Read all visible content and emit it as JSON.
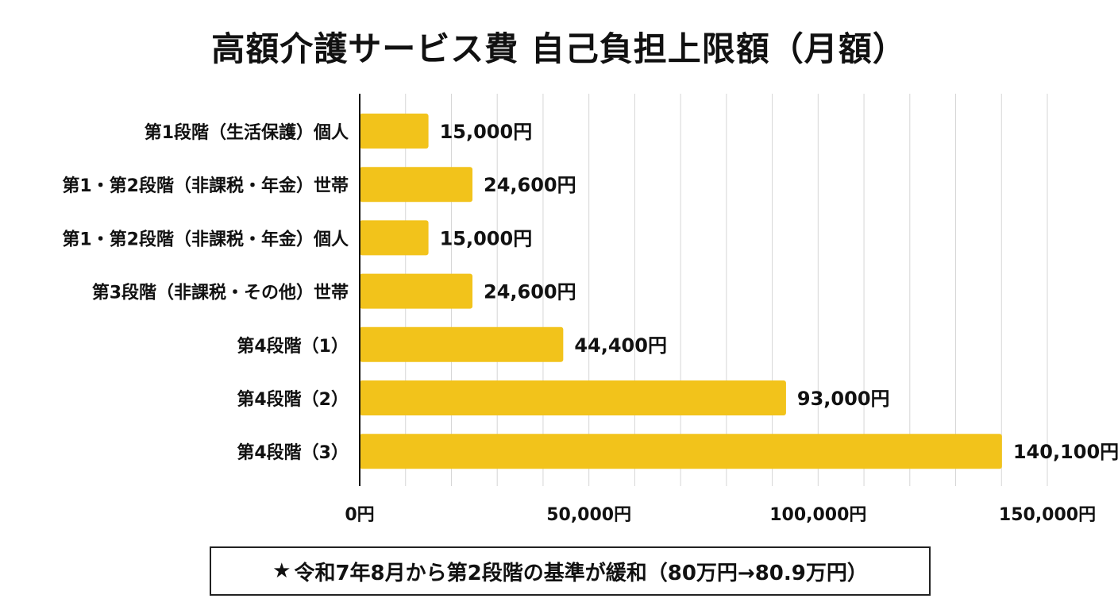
{
  "title": "高額介護サービス費 自己負担上限額（月額）",
  "note": {
    "star": "★",
    "text": "令和7年8月から第2段階の基準が緩和（80万円→80.9万円）"
  },
  "colors": {
    "bar": "#f2c31b",
    "grid": "#d6d6d6",
    "axis": "#111111"
  },
  "chart_data": {
    "type": "bar",
    "orientation": "horizontal",
    "title": "高額介護サービス費 自己負担上限額（月額）",
    "xlabel": "",
    "ylabel": "",
    "xlim": [
      0,
      150000
    ],
    "grid": true,
    "categories": [
      "第1段階（生活保護）個人",
      "第1・第2段階（非課税・年金）世帯",
      "第1・第2段階（非課税・年金）個人",
      "第3段階（非課税・その他）世帯",
      "第4段階（1）",
      "第4段階（2）",
      "第4段階（3）"
    ],
    "values": [
      15000,
      24600,
      15000,
      24600,
      44400,
      93000,
      140100
    ],
    "value_labels": [
      "15,000円",
      "24,600円",
      "15,000円",
      "24,600円",
      "44,400円",
      "93,000円",
      "140,100円"
    ],
    "x_ticks": [
      0,
      50000,
      100000,
      150000
    ],
    "x_tick_labels": [
      "0円",
      "50,000円",
      "100,000円",
      "150,000円"
    ]
  }
}
